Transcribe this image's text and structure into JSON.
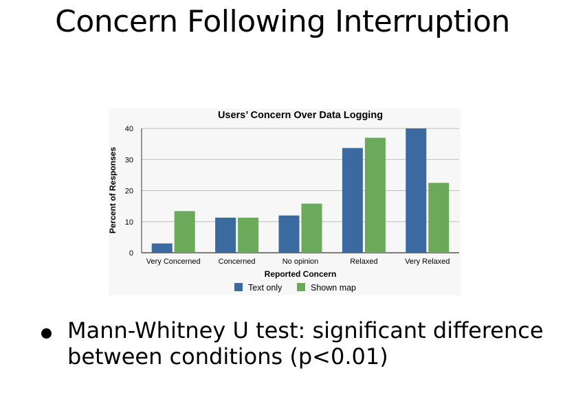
{
  "slide": {
    "title": "Concern Following Interruption",
    "bullet": "Mann-Whitney U test: significant difference between conditions (p<0.01)"
  },
  "chart_data": {
    "type": "bar",
    "title": "Users’ Concern Over Data Logging",
    "xlabel": "Reported Concern",
    "ylabel": "Percent of Responses",
    "categories": [
      "Very Concerned",
      "Concerned",
      "No opinion",
      "Relaxed",
      "Very Relaxed"
    ],
    "yticks": [
      0,
      10,
      20,
      30,
      40
    ],
    "ylim": [
      0,
      40
    ],
    "grid": true,
    "legend_position": "bottom",
    "series": [
      {
        "name": "Text only",
        "color": "#3b6aa0",
        "values": [
          3,
          11.3,
          12,
          33.7,
          40
        ]
      },
      {
        "name": "Shown map",
        "color": "#6aaa5a",
        "values": [
          13.4,
          11.3,
          15.8,
          37,
          22.5
        ]
      }
    ]
  }
}
